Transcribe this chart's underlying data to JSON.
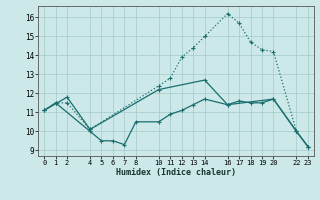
{
  "xlabel": "Humidex (Indice chaleur)",
  "bg_color": "#cce8e8",
  "grid_color": "#aacece",
  "line_color": "#1a6e6e",
  "xlim": [
    -0.5,
    23.5
  ],
  "ylim": [
    8.7,
    16.6
  ],
  "xticks": [
    0,
    1,
    2,
    4,
    5,
    6,
    7,
    8,
    10,
    11,
    12,
    13,
    14,
    16,
    17,
    18,
    19,
    20,
    22,
    23
  ],
  "yticks": [
    9,
    10,
    11,
    12,
    13,
    14,
    15,
    16
  ],
  "line1_x": [
    0,
    1,
    2,
    4,
    10,
    11,
    12,
    13,
    14,
    16,
    17,
    18,
    19,
    20,
    22,
    23
  ],
  "line1_y": [
    11.1,
    11.5,
    11.5,
    10.1,
    12.4,
    12.8,
    13.9,
    14.4,
    15.0,
    16.2,
    15.7,
    14.7,
    14.3,
    14.2,
    10.0,
    9.2
  ],
  "line2_x": [
    0,
    1,
    4,
    5,
    6,
    7,
    8,
    10,
    11,
    12,
    13,
    14,
    16,
    17,
    18,
    19,
    20,
    22,
    23
  ],
  "line2_y": [
    11.1,
    11.5,
    10.0,
    9.5,
    9.5,
    9.3,
    10.5,
    10.5,
    10.9,
    11.1,
    11.4,
    11.7,
    11.4,
    11.6,
    11.5,
    11.5,
    11.7,
    10.0,
    9.2
  ],
  "line3_x": [
    0,
    2,
    4,
    10,
    14,
    16,
    20,
    22,
    23
  ],
  "line3_y": [
    11.1,
    11.8,
    10.1,
    12.2,
    12.7,
    11.4,
    11.7,
    10.0,
    9.2
  ]
}
